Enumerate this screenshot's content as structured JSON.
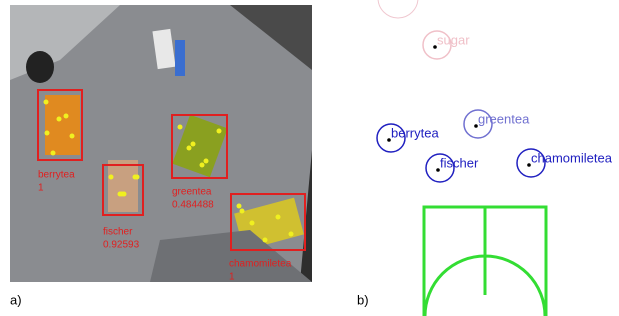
{
  "panel_a": {
    "label": "a)",
    "detections": [
      {
        "name": "berrytea",
        "score": 1
      },
      {
        "name": "greentea",
        "score": 0.484488
      },
      {
        "name": "fischer",
        "score": 0.92593
      },
      {
        "name": "chamomiletea",
        "score": 1
      }
    ]
  },
  "panel_b": {
    "label": "b)",
    "objects": [
      "sugar",
      "berrytea",
      "greentea",
      "fischer",
      "chamomiletea"
    ]
  }
}
